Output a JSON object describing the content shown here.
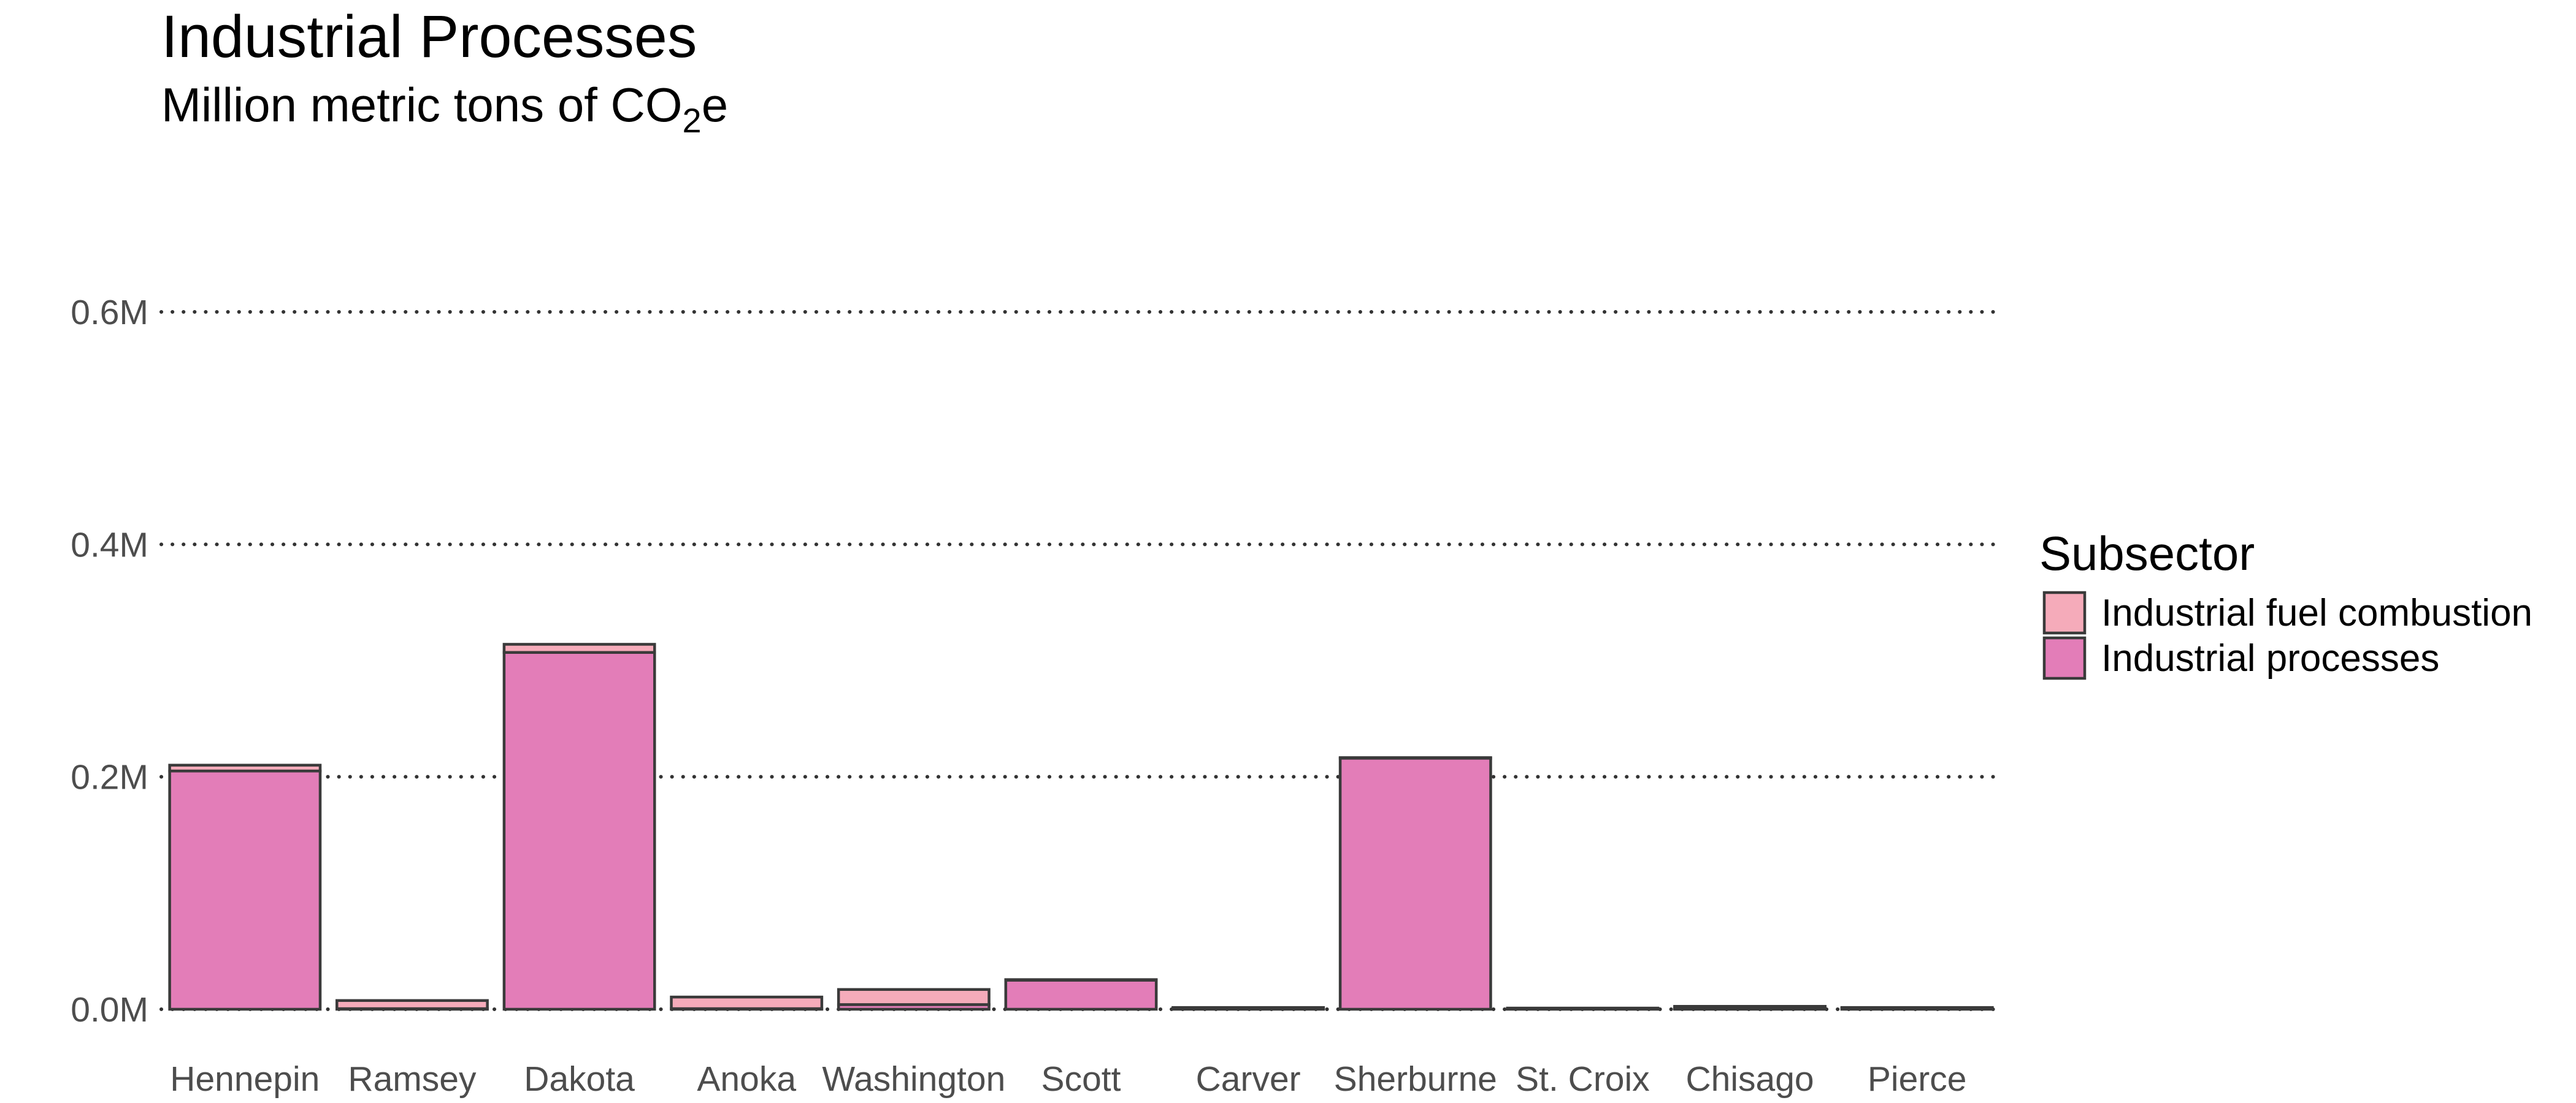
{
  "chart_data": {
    "type": "bar",
    "stacked": true,
    "title": "Industrial Processes",
    "subtitle": {
      "prefix": "Million metric tons of CO",
      "subscript": "2",
      "suffix": "e"
    },
    "xlabel": "",
    "ylabel": "",
    "ylim": [
      0,
      0.6
    ],
    "yticks": [
      0,
      0.2,
      0.4,
      0.6
    ],
    "ytick_labels": [
      "0.0M",
      "0.2M",
      "0.4M",
      "0.6M"
    ],
    "grid": "horizontal dotted",
    "categories": [
      "Hennepin",
      "Ramsey",
      "Dakota",
      "Anoka",
      "Washington",
      "Scott",
      "Carver",
      "Sherburne",
      "St. Croix",
      "Chisago",
      "Pierce"
    ],
    "series": [
      {
        "name": "Industrial processes",
        "color": "#e37db8",
        "values": [
          0.205,
          0.0005,
          0.307,
          0.0005,
          0.004,
          0.025,
          0.0005,
          0.216,
          0.0005,
          0.001,
          0.0005
        ]
      },
      {
        "name": "Industrial fuel combustion",
        "color": "#f5abba",
        "values": [
          0.005,
          0.007,
          0.007,
          0.01,
          0.013,
          0.0005,
          0.001,
          0.0005,
          0.0005,
          0.0015,
          0.001
        ]
      }
    ],
    "legend": {
      "title": "Subsector",
      "position": "right",
      "entries": [
        {
          "label": "Industrial fuel combustion",
          "color": "#f5abba"
        },
        {
          "label": "Industrial processes",
          "color": "#e37db8"
        }
      ]
    }
  }
}
